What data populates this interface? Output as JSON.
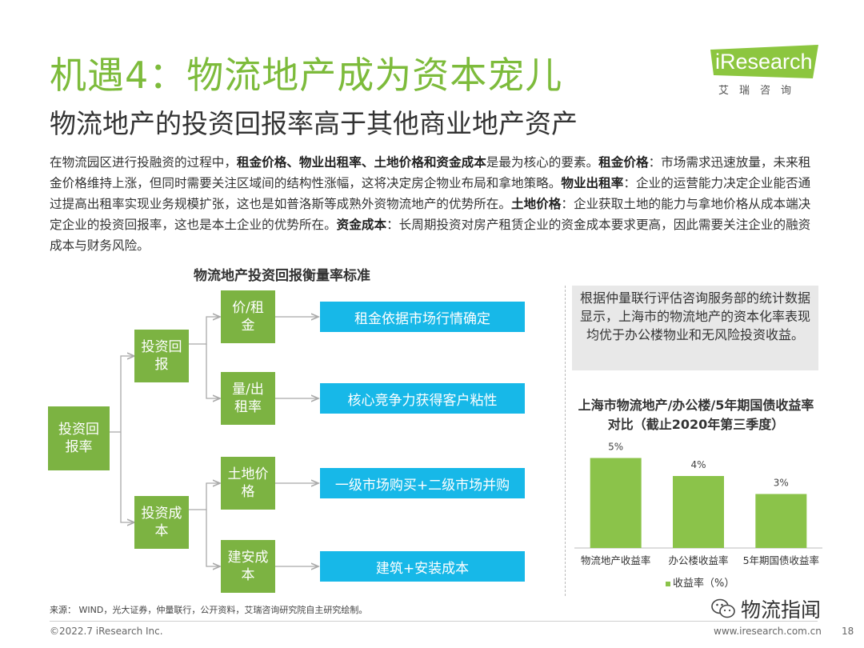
{
  "title": "机遇4：物流地产成为资本宠儿",
  "subtitle": "物流地产的投资回报率高于其他商业地产资产",
  "logo": {
    "i": "i",
    "rest": "Research",
    "cn": "艾瑞咨询"
  },
  "paragraph": {
    "s1": "在物流园区进行投融资的过程中，",
    "b1": "租金价格、物业出租率、土地价格和资金成本",
    "s2": "是最为核心的要素。",
    "b2": "租金价格",
    "s3": "：市场需求迅速放量，未来租金价格维持上涨，但同时需要关注区域间的结构性涨幅，这将决定房企物业布局和拿地策略。",
    "b3": "物业出租率",
    "s4": "：企业的运营能力决定企业能否通过提高出租率实现业务规模扩张，这也是如普洛斯等成熟外资物流地产的优势所在。",
    "b4": "土地价格",
    "s5": "：企业获取土地的能力与拿地价格从成本端决定企业的投资回报率，这也是本土企业的优势所在。",
    "b5": "资金成本",
    "s6": "：长周期投资对房产租赁企业的资金成本要求更高，因此需要关注企业的融资成本与财务风险。"
  },
  "diagram": {
    "title": "物流地产投资回报衡量率标准",
    "root": "投资回报率",
    "mid_top": "投资回报",
    "mid_bottom": "投资成本",
    "leaf1": "价/租金",
    "leaf2": "量/出租率",
    "leaf3": "土地价格",
    "leaf4": "建安成本",
    "desc1": "租金依据市场行情确定",
    "desc2": "核心竞争力获得客户粘性",
    "desc3": "一级市场购买+二级市场并购",
    "desc4": "建筑+安装成本"
  },
  "note": "根据仲量联行评估咨询服务部的统计数据显示，上海市的物流地产的资本化率表现均优于办公楼物业和无风险投资收益。",
  "chart_data": {
    "type": "bar",
    "title": "上海市物流地产/办公楼/5年期国债收益率对比（截止2020年第三季度）",
    "categories": [
      "物流地产收益率",
      "办公楼收益率",
      "5年期国债收益率"
    ],
    "values": [
      5,
      4,
      3
    ],
    "labels": [
      "5%",
      "4%",
      "3%"
    ],
    "series_name": "收益率（%）",
    "ylim": [
      0,
      6
    ],
    "color": "#8bc34a"
  },
  "source": "来源： WIND，光大证券，仲量联行，公开资料，艾瑞咨询研究院自主研究绘制。",
  "copyright": "©2022.7 iResearch Inc.",
  "site": "www.iresearch.com.cn",
  "page": "18",
  "watermark": "物流指闻",
  "colors": {
    "green": "#7cb342",
    "title_green": "#7dbb3b",
    "blue": "#17b8e8"
  }
}
